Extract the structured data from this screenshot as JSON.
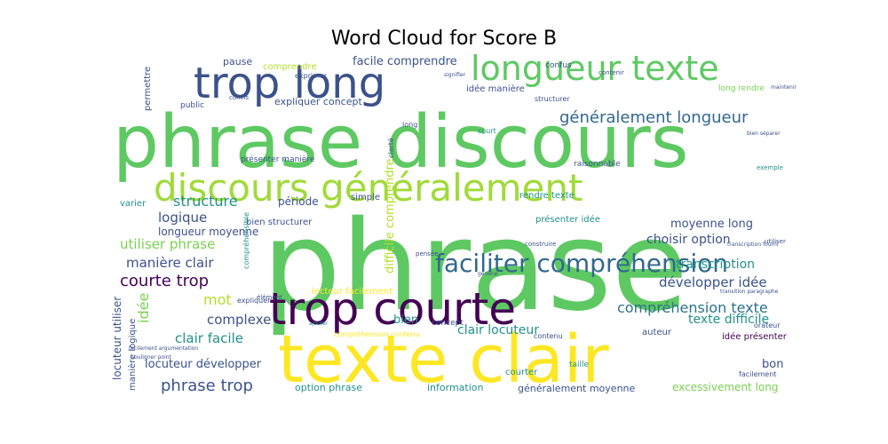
{
  "chart_data": {
    "type": "wordcloud",
    "title": "Word Cloud for Score B",
    "words": [
      {
        "text": "phrase",
        "color": "#5ec962"
      },
      {
        "text": "phrase discours",
        "color": "#5ec962"
      },
      {
        "text": "texte clair",
        "color": "#fde725"
      },
      {
        "text": "trop courte",
        "color": "#440154"
      },
      {
        "text": "trop long",
        "color": "#3b528b"
      },
      {
        "text": "discours généralement",
        "color": "#a0da39"
      },
      {
        "text": "longueur texte",
        "color": "#5ec962"
      },
      {
        "text": "faciliter compréhension",
        "color": "#31688e"
      },
      {
        "text": "généralement longueur",
        "color": "#31688e"
      },
      {
        "text": "compréhension texte",
        "color": "#2c728e"
      },
      {
        "text": "phrase trop",
        "color": "#3b528b"
      },
      {
        "text": "courte trop",
        "color": "#440154"
      },
      {
        "text": "structure",
        "color": "#21918c"
      },
      {
        "text": "logique",
        "color": "#3b528b"
      },
      {
        "text": "utiliser phrase",
        "color": "#7ad151"
      },
      {
        "text": "manière clair",
        "color": "#3b528b"
      },
      {
        "text": "complexe",
        "color": "#3b528b"
      },
      {
        "text": "clair facile",
        "color": "#21918c"
      },
      {
        "text": "locuteur développer",
        "color": "#3b528b"
      },
      {
        "text": "longueur moyenne",
        "color": "#3b528b"
      },
      {
        "text": "développer idée",
        "color": "#3b528b"
      },
      {
        "text": "texte difficile",
        "color": "#21918c"
      },
      {
        "text": "clair locuteur",
        "color": "#21918c"
      },
      {
        "text": "transcription",
        "color": "#21918c"
      },
      {
        "text": "choisir option",
        "color": "#3b528b"
      },
      {
        "text": "moyenne long",
        "color": "#3b528b"
      },
      {
        "text": "idée",
        "color": "#7ad151"
      },
      {
        "text": "mot",
        "color": "#b5de2b"
      },
      {
        "text": "bien",
        "color": "#21918c"
      },
      {
        "text": "bon",
        "color": "#3b528b"
      },
      {
        "text": "difficile comprendre",
        "color": "#b5de2b"
      },
      {
        "text": "locuteur utiliser",
        "color": "#3b528b"
      },
      {
        "text": "manière logique",
        "color": "#3b528b"
      },
      {
        "text": "excessivement long",
        "color": "#7ad151"
      },
      {
        "text": "généralement moyenne",
        "color": "#3b528b"
      },
      {
        "text": "option phrase",
        "color": "#21918c"
      },
      {
        "text": "information",
        "color": "#21918c"
      },
      {
        "text": "facile comprendre",
        "color": "#3b528b"
      },
      {
        "text": "expliquer concept",
        "color": "#3b528b"
      },
      {
        "text": "idée manière",
        "color": "#3b528b"
      },
      {
        "text": "comprendre",
        "color": "#b5de2b"
      },
      {
        "text": "pause",
        "color": "#3b528b"
      },
      {
        "text": "période",
        "color": "#3b528b"
      },
      {
        "text": "varier",
        "color": "#21918c"
      },
      {
        "text": "bien structurer",
        "color": "#3b528b"
      },
      {
        "text": "permettre",
        "color": "#3b528b"
      },
      {
        "text": "public",
        "color": "#3b528b"
      },
      {
        "text": "rendre texte",
        "color": "#21918c"
      },
      {
        "text": "présenter idée",
        "color": "#21918c"
      },
      {
        "text": "simple",
        "color": "#3b528b"
      },
      {
        "text": "courter",
        "color": "#21918c"
      },
      {
        "text": "auteur",
        "color": "#3b528b"
      },
      {
        "text": "idée présenter",
        "color": "#440154"
      },
      {
        "text": "taille",
        "color": "#21918c"
      },
      {
        "text": "lecteur facilement",
        "color": "#fde725"
      },
      {
        "text": "concept",
        "color": "#3b528b"
      },
      {
        "text": "raisonnable",
        "color": "#3b528b"
      },
      {
        "text": "présenter manière",
        "color": "#3b528b"
      },
      {
        "text": "long rendre",
        "color": "#7ad151"
      },
      {
        "text": "confus",
        "color": "#3b528b"
      },
      {
        "text": "structurer",
        "color": "#3b528b"
      },
      {
        "text": "long",
        "color": "#3b528b"
      },
      {
        "text": "court",
        "color": "#21918c"
      },
      {
        "text": "expliquer",
        "color": "#3b528b"
      },
      {
        "text": "pensée",
        "color": "#3b528b"
      },
      {
        "text": "construire",
        "color": "#3b528b"
      },
      {
        "text": "compréhension contenu",
        "color": "#fde725"
      },
      {
        "text": "contenu",
        "color": "#3b528b"
      },
      {
        "text": "orateur",
        "color": "#3b528b"
      },
      {
        "text": "élément",
        "color": "#3b528b"
      },
      {
        "text": "clarté",
        "color": "#3b528b"
      },
      {
        "text": "compréhensible",
        "color": "#21918c"
      },
      {
        "text": "utiliser",
        "color": "#3b528b"
      },
      {
        "text": "exemple",
        "color": "#21918c"
      },
      {
        "text": "facilement",
        "color": "#3b528b"
      },
      {
        "text": "maintenir",
        "color": "#3b528b"
      },
      {
        "text": "général",
        "color": "#3b528b"
      },
      {
        "text": "contenir",
        "color": "#3b528b"
      },
      {
        "text": "signifier",
        "color": "#3b528b"
      },
      {
        "text": "ajouter",
        "color": "#21918c"
      },
      {
        "text": "transition paragraphe",
        "color": "#3b528b"
      },
      {
        "text": "facilement argumentation",
        "color": "#3b528b"
      },
      {
        "text": "souligner point",
        "color": "#3b528b"
      },
      {
        "text": "transcription fourni",
        "color": "#3b528b"
      },
      {
        "text": "bien séparer",
        "color": "#3b528b"
      },
      {
        "text": "exprimer",
        "color": "#3b528b"
      },
      {
        "text": "concis",
        "color": "#3b528b"
      }
    ]
  }
}
